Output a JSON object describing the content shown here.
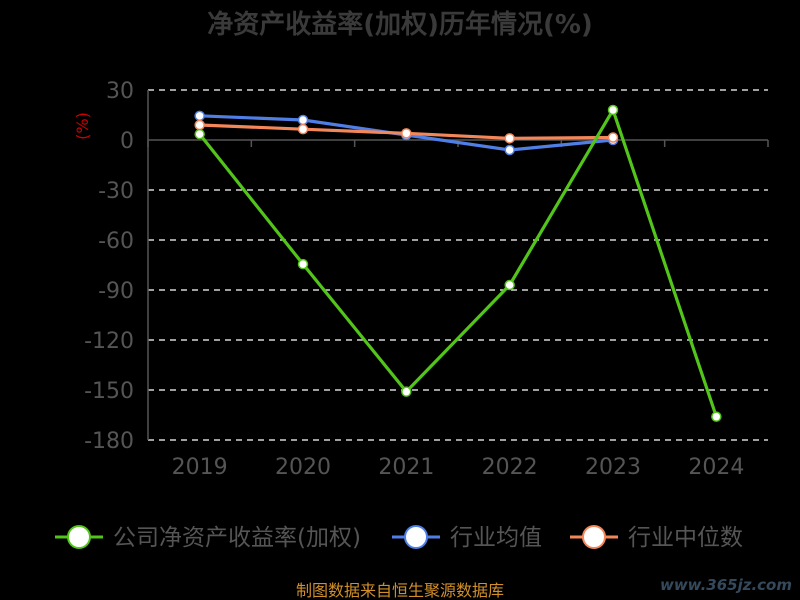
{
  "chart_data": {
    "type": "line",
    "title": "净资产收益率(加权)历年情况(%)",
    "ylabel": "(%)",
    "xlabel": "",
    "categories": [
      "2019",
      "2020",
      "2021",
      "2022",
      "2023",
      "2024"
    ],
    "yticks": [
      30,
      0,
      -30,
      -60,
      -90,
      -120,
      -150,
      -180
    ],
    "ylim": [
      -180,
      30
    ],
    "grid": true,
    "legend_position": "bottom",
    "series": [
      {
        "name": "公司净资产收益率(加权)",
        "color": "#52c41a",
        "values": [
          3.5,
          -74.5,
          -151.0,
          -87.0,
          18.0,
          -166.0
        ]
      },
      {
        "name": "行业均值",
        "color": "#4f7fe6",
        "values": [
          14.5,
          12.0,
          3.0,
          -6.0,
          0.0,
          null
        ]
      },
      {
        "name": "行业中位数",
        "color": "#f4875a",
        "values": [
          9.0,
          6.5,
          4.0,
          1.0,
          1.5,
          null
        ]
      }
    ]
  },
  "source_text": "制图数据来自恒生聚源数据库",
  "watermark": "www.365jz.com",
  "colors": {
    "background": "#000000",
    "title": "#3a3a3a",
    "axis_text": "#555555",
    "ylabel": "#cc0000",
    "grid": "#ffffff",
    "source": "#d18f2a"
  }
}
